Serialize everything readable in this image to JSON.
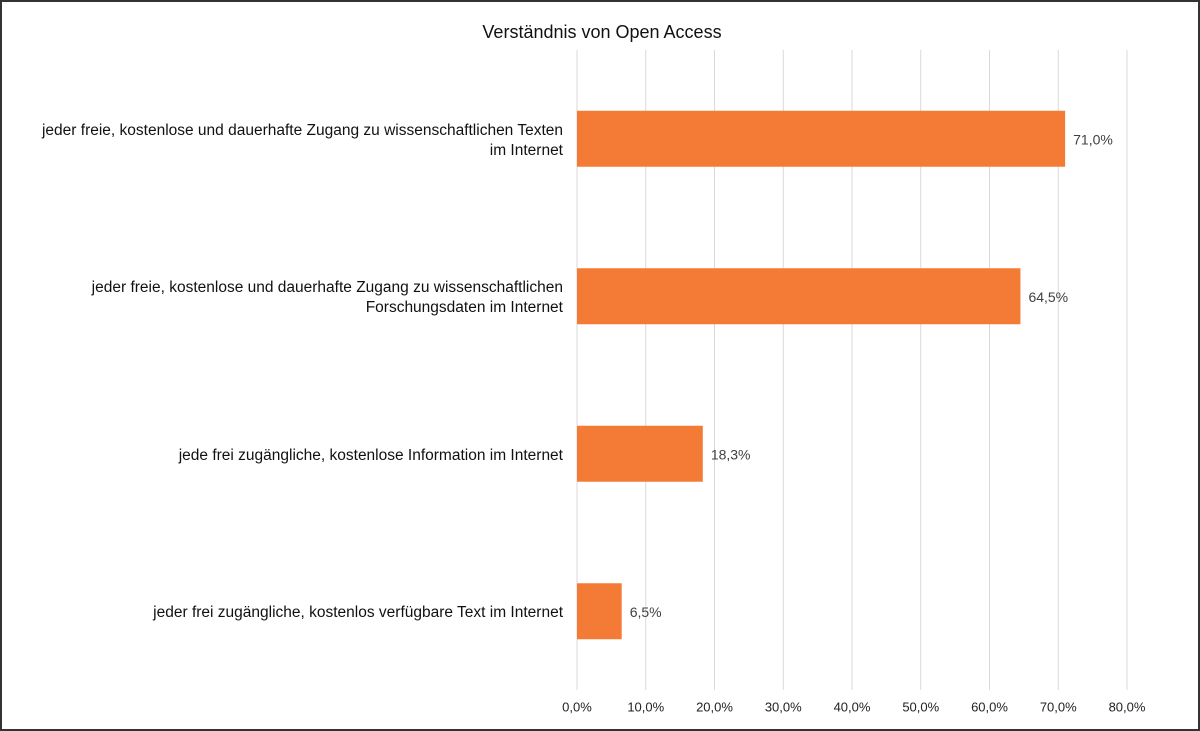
{
  "chart_data": {
    "type": "bar",
    "orientation": "horizontal",
    "title": "Verständnis von Open Access",
    "categories": [
      "jeder freie, kostenlose und dauerhafte Zugang zu wissenschaftlichen Texten im Internet",
      "jeder freie, kostenlose und dauerhafte Zugang zu wissenschaftlichen Forschungsdaten im Internet",
      "jede frei zugängliche, kostenlose Information im Internet",
      "jeder frei zugängliche, kostenlos verfügbare Text im Internet"
    ],
    "values": [
      71.0,
      64.5,
      18.3,
      6.5
    ],
    "value_labels": [
      "71,0%",
      "64,5%",
      "18,3%",
      "6,5%"
    ],
    "color": "#f47b35",
    "xlim": [
      0,
      80
    ],
    "xticks": [
      {
        "value": 0,
        "label": "0,0%"
      },
      {
        "value": 10,
        "label": "10,0%"
      },
      {
        "value": 20,
        "label": "20,0%"
      },
      {
        "value": 30,
        "label": "30,0%"
      },
      {
        "value": 40,
        "label": "40,0%"
      },
      {
        "value": 50,
        "label": "50,0%"
      },
      {
        "value": 60,
        "label": "60,0%"
      },
      {
        "value": 70,
        "label": "70,0%"
      },
      {
        "value": 80,
        "label": "80,0%"
      }
    ],
    "grid": true
  }
}
